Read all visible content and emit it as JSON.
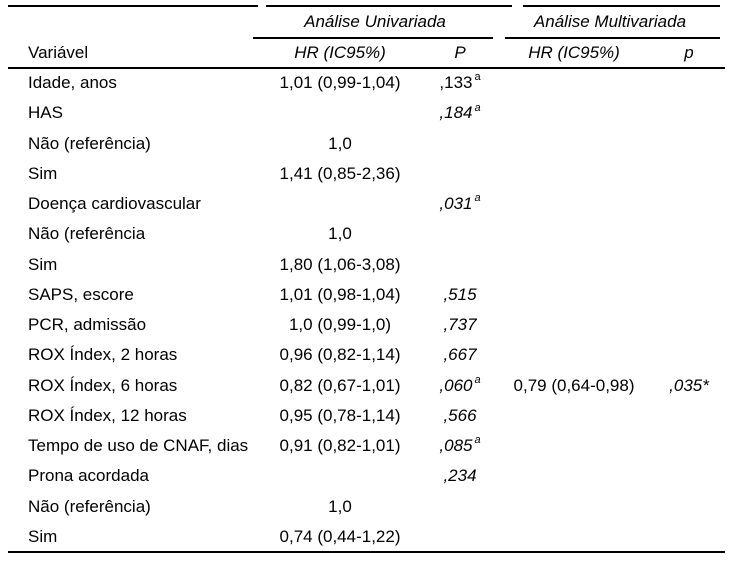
{
  "table": {
    "stub_header": "Variável",
    "groups": [
      {
        "label": "Análise Univariada"
      },
      {
        "label": "Análise Multivariada"
      }
    ],
    "columns": [
      {
        "label": "HR (IC95%)"
      },
      {
        "label": "P"
      },
      {
        "label": "HR (IC95%)"
      },
      {
        "label": "p"
      }
    ],
    "rows": [
      {
        "variavel": "Idade, anos",
        "u_hr": "1,01 (0,99-1,04)",
        "u_p": ",133",
        "u_p_sup": "a",
        "u_p_italic": false,
        "m_hr": "",
        "m_p": "",
        "m_p_sup": ""
      },
      {
        "variavel": "HAS",
        "u_hr": "",
        "u_p": ",184",
        "u_p_sup": "a",
        "u_p_italic": true,
        "m_hr": "",
        "m_p": "",
        "m_p_sup": ""
      },
      {
        "variavel": "Não (referência)",
        "u_hr": "1,0",
        "u_p": "",
        "u_p_sup": "",
        "u_p_italic": true,
        "m_hr": "",
        "m_p": "",
        "m_p_sup": ""
      },
      {
        "variavel": "Sim",
        "u_hr": "1,41 (0,85-2,36)",
        "u_p": "",
        "u_p_sup": "",
        "u_p_italic": true,
        "m_hr": "",
        "m_p": "",
        "m_p_sup": ""
      },
      {
        "variavel": "Doença cardiovascular",
        "u_hr": "",
        "u_p": ",031",
        "u_p_sup": "a",
        "u_p_italic": true,
        "m_hr": "",
        "m_p": "",
        "m_p_sup": ""
      },
      {
        "variavel": "Não (referência",
        "u_hr": "1,0",
        "u_p": "",
        "u_p_sup": "",
        "u_p_italic": true,
        "m_hr": "",
        "m_p": "",
        "m_p_sup": ""
      },
      {
        "variavel": "Sim",
        "u_hr": "1,80 (1,06-3,08)",
        "u_p": "",
        "u_p_sup": "",
        "u_p_italic": true,
        "m_hr": "",
        "m_p": "",
        "m_p_sup": ""
      },
      {
        "variavel": "SAPS, escore",
        "u_hr": "1,01 (0,98-1,04)",
        "u_p": ",515",
        "u_p_sup": "",
        "u_p_italic": true,
        "m_hr": "",
        "m_p": "",
        "m_p_sup": ""
      },
      {
        "variavel": "PCR, admissão",
        "u_hr": "1,0 (0,99-1,0)",
        "u_p": ",737",
        "u_p_sup": "",
        "u_p_italic": true,
        "m_hr": "",
        "m_p": "",
        "m_p_sup": ""
      },
      {
        "variavel": "ROX Índex, 2 horas",
        "u_hr": "0,96 (0,82-1,14)",
        "u_p": ",667",
        "u_p_sup": "",
        "u_p_italic": true,
        "m_hr": "",
        "m_p": "",
        "m_p_sup": ""
      },
      {
        "variavel": "ROX Índex, 6 horas",
        "u_hr": "0,82 (0,67-1,01)",
        "u_p": ",060",
        "u_p_sup": "a",
        "u_p_italic": true,
        "m_hr": "0,79 (0,64-0,98)",
        "m_p": ",035*",
        "m_p_sup": ""
      },
      {
        "variavel": "ROX Índex, 12 horas",
        "u_hr": "0,95 (0,78-1,14)",
        "u_p": ",566",
        "u_p_sup": "",
        "u_p_italic": true,
        "m_hr": "",
        "m_p": "",
        "m_p_sup": ""
      },
      {
        "variavel": "Tempo de uso de CNAF, dias",
        "u_hr": "0,91 (0,82-1,01)",
        "u_p": ",085",
        "u_p_sup": "a",
        "u_p_italic": true,
        "m_hr": "",
        "m_p": "",
        "m_p_sup": ""
      },
      {
        "variavel": "Prona acordada",
        "u_hr": "",
        "u_p": ",234",
        "u_p_sup": "",
        "u_p_italic": true,
        "m_hr": "",
        "m_p": "",
        "m_p_sup": ""
      },
      {
        "variavel": "Não (referência)",
        "u_hr": "1,0",
        "u_p": "",
        "u_p_sup": "",
        "u_p_italic": true,
        "m_hr": "",
        "m_p": "",
        "m_p_sup": ""
      },
      {
        "variavel": "Sim",
        "u_hr": "0,74 (0,44-1,22)",
        "u_p": "",
        "u_p_sup": "",
        "u_p_italic": true,
        "m_hr": "",
        "m_p": "",
        "m_p_sup": ""
      }
    ]
  },
  "colors": {
    "text": "#000000",
    "rule": "#000000",
    "background": "#ffffff"
  }
}
